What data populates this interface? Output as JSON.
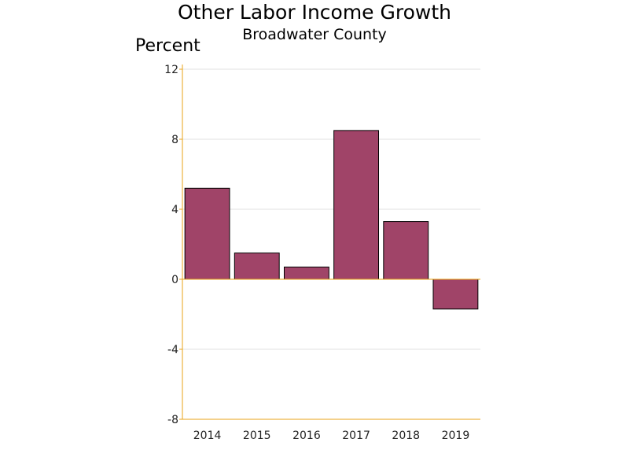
{
  "chart_data": {
    "type": "bar",
    "title": "Other Labor Income Growth",
    "subtitle": "Broadwater County",
    "ylabel": "Percent",
    "xlabel": "",
    "categories": [
      "2014",
      "2015",
      "2016",
      "2017",
      "2018",
      "2019"
    ],
    "values": [
      5.2,
      1.5,
      0.7,
      8.5,
      3.3,
      -1.7
    ],
    "ylim": [
      -8,
      12
    ],
    "yticks": [
      -8,
      -4,
      0,
      4,
      8,
      12
    ],
    "grid": true,
    "legend": "none",
    "colors": {
      "bar": "#A04468",
      "bar_outline": "#000000",
      "axis": "#E8A317",
      "grid": "#E2E2E2"
    }
  }
}
